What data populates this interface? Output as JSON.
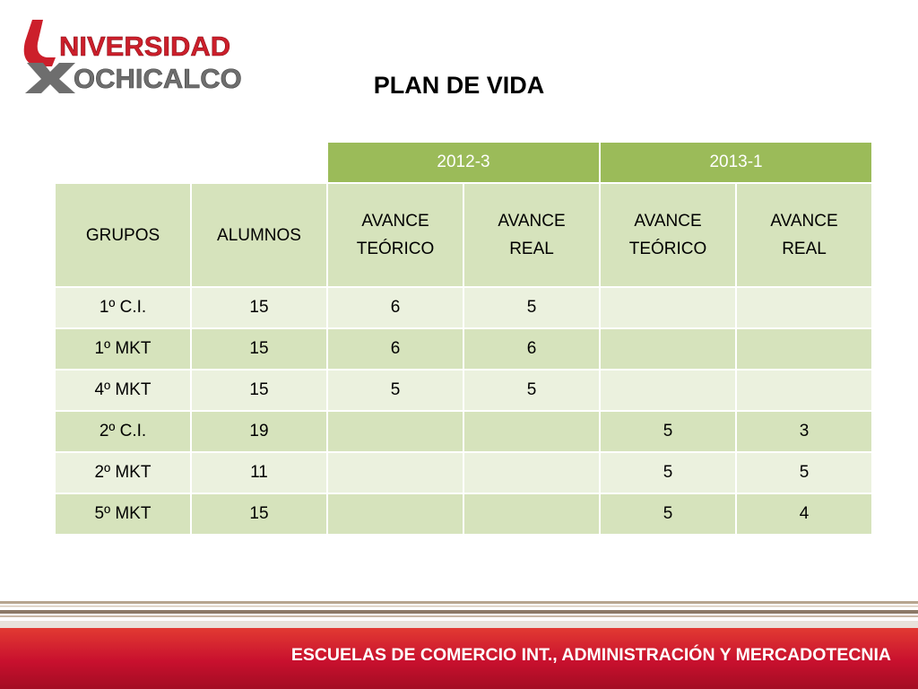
{
  "logo": {
    "text_line1": "NIVERSIDAD",
    "text_line2": "OCHICALCO",
    "red": "#cc1f2b",
    "gray": "#6e6e6e"
  },
  "title": "PLAN DE VIDA",
  "table": {
    "periods": [
      "2012-3",
      "2013-1"
    ],
    "headers": {
      "grupos": "GRUPOS",
      "alumnos": "ALUMNOS",
      "avance_teorico_line1": "AVANCE",
      "avance_teorico_line2": "TEÓRICO",
      "avance_real_line1": "AVANCE",
      "avance_real_line2": "REAL"
    },
    "rows": [
      {
        "grupo": "1º C.I.",
        "alumnos": "15",
        "p1_teorico": "6",
        "p1_real": "5",
        "p2_teorico": "",
        "p2_real": ""
      },
      {
        "grupo": "1º MKT",
        "alumnos": "15",
        "p1_teorico": "6",
        "p1_real": "6",
        "p2_teorico": "",
        "p2_real": ""
      },
      {
        "grupo": "4º MKT",
        "alumnos": "15",
        "p1_teorico": "5",
        "p1_real": "5",
        "p2_teorico": "",
        "p2_real": ""
      },
      {
        "grupo": "2º C.I.",
        "alumnos": "19",
        "p1_teorico": "",
        "p1_real": "",
        "p2_teorico": "5",
        "p2_real": "3"
      },
      {
        "grupo": "2º MKT",
        "alumnos": "11",
        "p1_teorico": "",
        "p1_real": "",
        "p2_teorico": "5",
        "p2_real": "5"
      },
      {
        "grupo": "5º MKT",
        "alumnos": "15",
        "p1_teorico": "",
        "p1_real": "",
        "p2_teorico": "5",
        "p2_real": "4"
      }
    ]
  },
  "footer": {
    "text": "ESCUELAS DE COMERCIO INT., ADMINISTRACIÓN Y MERCADOTECNIA"
  },
  "colors": {
    "header_green": "#9bbb59",
    "cell_green_dark": "#d6e3bc",
    "cell_green_light": "#ebf1de",
    "footer_red": "#c8102e"
  }
}
